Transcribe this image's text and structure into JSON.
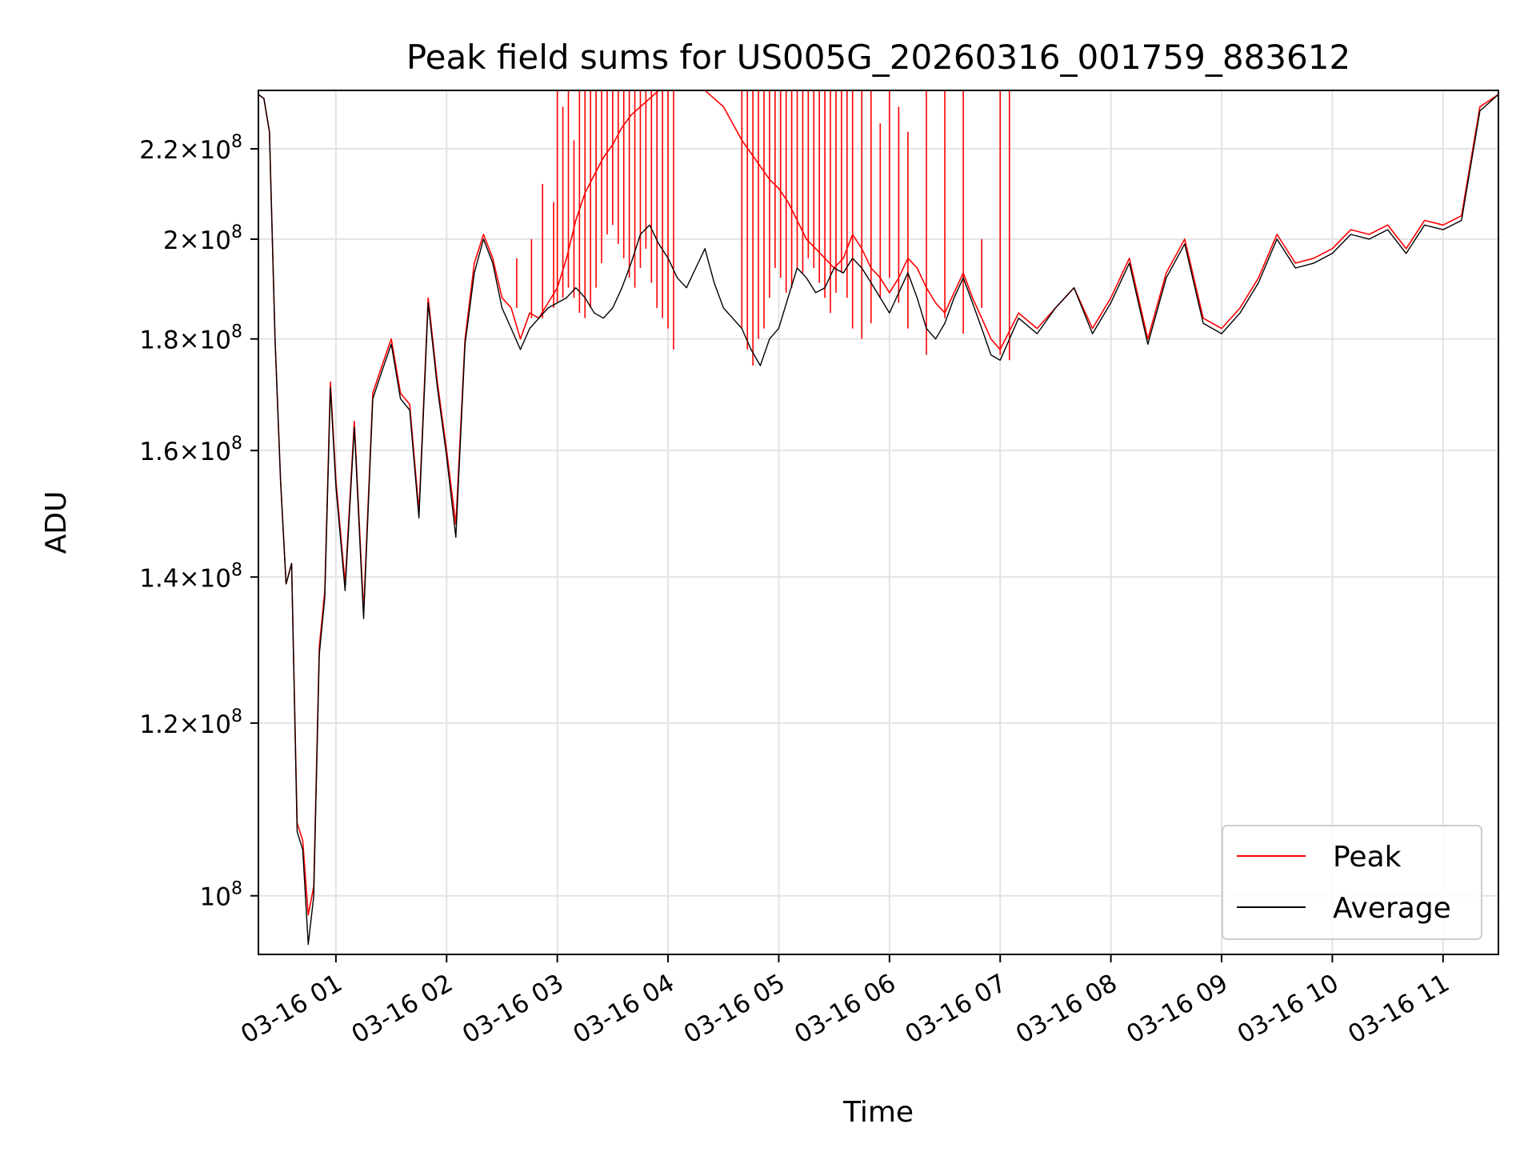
{
  "chart_data": {
    "type": "line",
    "title": "Peak field sums for US005G_20260316_001759_883612",
    "xlabel": "Time",
    "ylabel": "ADU",
    "yscale": "log",
    "grid": true,
    "legend_position": "lower-right",
    "xlim": [
      "2026-03-16 00:18",
      "2026-03-16 11:30"
    ],
    "ylim": [
      94000000,
      234000000
    ],
    "x_ticks": [
      {
        "value": "2026-03-16 01:00",
        "label": "03-16 01"
      },
      {
        "value": "2026-03-16 02:00",
        "label": "03-16 02"
      },
      {
        "value": "2026-03-16 03:00",
        "label": "03-16 03"
      },
      {
        "value": "2026-03-16 04:00",
        "label": "03-16 04"
      },
      {
        "value": "2026-03-16 05:00",
        "label": "03-16 05"
      },
      {
        "value": "2026-03-16 06:00",
        "label": "03-16 06"
      },
      {
        "value": "2026-03-16 07:00",
        "label": "03-16 07"
      },
      {
        "value": "2026-03-16 08:00",
        "label": "03-16 08"
      },
      {
        "value": "2026-03-16 09:00",
        "label": "03-16 09"
      },
      {
        "value": "2026-03-16 10:00",
        "label": "03-16 10"
      },
      {
        "value": "2026-03-16 11:00",
        "label": "03-16 11"
      }
    ],
    "y_ticks": [
      {
        "value": 100000000,
        "mantissa": "",
        "exponent": "8"
      },
      {
        "value": 120000000,
        "mantissa": "1.2",
        "exponent": "8"
      },
      {
        "value": 140000000,
        "mantissa": "1.4",
        "exponent": "8"
      },
      {
        "value": 160000000,
        "mantissa": "1.6",
        "exponent": "8"
      },
      {
        "value": 180000000,
        "mantissa": "1.8",
        "exponent": "8"
      },
      {
        "value": 200000000,
        "mantissa": "2",
        "exponent": "8"
      },
      {
        "value": 220000000,
        "mantissa": "2.2",
        "exponent": "8"
      }
    ],
    "series": [
      {
        "name": "Peak",
        "color": "#ff0000",
        "x": [
          "00:18",
          "00:21",
          "00:24",
          "00:27",
          "00:30",
          "00:33",
          "00:36",
          "00:39",
          "00:42",
          "00:45",
          "00:48",
          "00:51",
          "00:54",
          "00:57",
          "01:00",
          "01:05",
          "01:10",
          "01:15",
          "01:20",
          "01:25",
          "01:30",
          "01:35",
          "01:40",
          "01:45",
          "01:50",
          "01:55",
          "02:00",
          "02:05",
          "02:10",
          "02:15",
          "02:20",
          "02:25",
          "02:30",
          "02:35",
          "02:40",
          "02:45",
          "02:50",
          "02:55",
          "03:00",
          "03:05",
          "03:10",
          "03:15",
          "03:20",
          "03:25",
          "03:30",
          "03:35",
          "03:40",
          "03:45",
          "03:50",
          "03:55",
          "04:00",
          "04:05",
          "04:10",
          "04:15",
          "04:20",
          "04:25",
          "04:30",
          "04:35",
          "04:40",
          "04:45",
          "04:50",
          "04:55",
          "05:00",
          "05:05",
          "05:10",
          "05:15",
          "05:20",
          "05:25",
          "05:30",
          "05:35",
          "05:40",
          "05:45",
          "05:50",
          "05:55",
          "06:00",
          "06:05",
          "06:10",
          "06:15",
          "06:20",
          "06:25",
          "06:30",
          "06:35",
          "06:40",
          "06:45",
          "06:50",
          "06:55",
          "07:00",
          "07:10",
          "07:20",
          "07:30",
          "07:40",
          "07:50",
          "08:00",
          "08:10",
          "08:20",
          "08:30",
          "08:40",
          "08:50",
          "09:00",
          "09:10",
          "09:20",
          "09:30",
          "09:40",
          "09:50",
          "10:00",
          "10:10",
          "10:20",
          "10:30",
          "10:40",
          "10:50",
          "11:00",
          "11:10",
          "11:20",
          "11:30"
        ],
        "y": [
          233000000,
          232000000,
          224000000,
          180000000,
          155000000,
          139000000,
          142000000,
          108000000,
          106000000,
          98000000,
          101000000,
          130000000,
          138000000,
          172000000,
          155000000,
          139000000,
          165000000,
          135000000,
          170000000,
          175000000,
          180000000,
          170000000,
          168000000,
          150000000,
          188000000,
          172000000,
          160000000,
          148000000,
          180000000,
          195000000,
          201000000,
          196000000,
          188000000,
          186000000,
          180000000,
          185000000,
          184000000,
          187000000,
          190000000,
          196000000,
          204000000,
          210000000,
          214000000,
          218000000,
          221000000,
          225000000,
          228000000,
          230000000,
          232000000,
          234000000,
          234000000,
          234000000,
          234000000,
          234000000,
          234000000,
          232000000,
          230000000,
          226000000,
          222000000,
          219000000,
          216000000,
          213000000,
          211000000,
          208000000,
          204000000,
          200000000,
          198000000,
          196000000,
          194000000,
          196000000,
          201000000,
          198000000,
          194000000,
          192000000,
          189000000,
          192000000,
          196000000,
          194000000,
          190000000,
          187000000,
          185000000,
          189000000,
          193000000,
          188000000,
          184000000,
          180000000,
          178000000,
          185000000,
          182000000,
          186000000,
          190000000,
          182000000,
          188000000,
          196000000,
          180000000,
          193000000,
          200000000,
          184000000,
          182000000,
          186000000,
          192000000,
          201000000,
          195000000,
          196000000,
          198000000,
          202000000,
          201000000,
          203000000,
          198000000,
          204000000,
          203000000,
          205000000,
          230000000,
          233000000
        ]
      },
      {
        "name": "Average",
        "color": "#000000",
        "x": [
          "00:18",
          "00:21",
          "00:24",
          "00:27",
          "00:30",
          "00:33",
          "00:36",
          "00:39",
          "00:42",
          "00:45",
          "00:48",
          "00:51",
          "00:54",
          "00:57",
          "01:00",
          "01:05",
          "01:10",
          "01:15",
          "01:20",
          "01:25",
          "01:30",
          "01:35",
          "01:40",
          "01:45",
          "01:50",
          "01:55",
          "02:00",
          "02:05",
          "02:10",
          "02:15",
          "02:20",
          "02:25",
          "02:30",
          "02:35",
          "02:40",
          "02:45",
          "02:50",
          "02:55",
          "03:00",
          "03:05",
          "03:10",
          "03:15",
          "03:20",
          "03:25",
          "03:30",
          "03:35",
          "03:40",
          "03:45",
          "03:50",
          "03:55",
          "04:00",
          "04:05",
          "04:10",
          "04:15",
          "04:20",
          "04:25",
          "04:30",
          "04:35",
          "04:40",
          "04:45",
          "04:50",
          "04:55",
          "05:00",
          "05:05",
          "05:10",
          "05:15",
          "05:20",
          "05:25",
          "05:30",
          "05:35",
          "05:40",
          "05:45",
          "05:50",
          "05:55",
          "06:00",
          "06:05",
          "06:10",
          "06:15",
          "06:20",
          "06:25",
          "06:30",
          "06:35",
          "06:40",
          "06:45",
          "06:50",
          "06:55",
          "07:00",
          "07:10",
          "07:20",
          "07:30",
          "07:40",
          "07:50",
          "08:00",
          "08:10",
          "08:20",
          "08:30",
          "08:40",
          "08:50",
          "09:00",
          "09:10",
          "09:20",
          "09:30",
          "09:40",
          "09:50",
          "10:00",
          "10:10",
          "10:20",
          "10:30",
          "10:40",
          "10:50",
          "11:00",
          "11:10",
          "11:20",
          "11:30"
        ],
        "y": [
          233000000,
          232000000,
          224000000,
          180000000,
          155000000,
          139000000,
          142000000,
          107000000,
          105000000,
          95000000,
          100000000,
          129000000,
          137000000,
          171000000,
          154000000,
          138000000,
          164000000,
          134000000,
          169000000,
          174000000,
          179000000,
          169000000,
          167000000,
          149000000,
          187000000,
          171000000,
          159000000,
          146000000,
          179000000,
          193000000,
          200000000,
          195000000,
          186000000,
          182000000,
          178000000,
          182000000,
          184000000,
          186000000,
          187000000,
          188000000,
          190000000,
          188000000,
          185000000,
          184000000,
          186000000,
          190000000,
          195000000,
          201000000,
          203000000,
          199000000,
          196000000,
          192000000,
          190000000,
          194000000,
          198000000,
          191000000,
          186000000,
          184000000,
          182000000,
          178000000,
          175000000,
          180000000,
          182000000,
          188000000,
          194000000,
          192000000,
          189000000,
          190000000,
          194000000,
          193000000,
          196000000,
          194000000,
          191000000,
          188000000,
          185000000,
          189000000,
          193000000,
          188000000,
          182000000,
          180000000,
          183000000,
          188000000,
          192000000,
          187000000,
          182000000,
          177000000,
          176000000,
          184000000,
          181000000,
          186000000,
          190000000,
          181000000,
          187000000,
          195000000,
          179000000,
          192000000,
          199000000,
          183000000,
          181000000,
          185000000,
          191000000,
          200000000,
          194000000,
          195000000,
          197000000,
          201000000,
          200000000,
          202000000,
          197000000,
          203000000,
          202000000,
          204000000,
          229000000,
          233000000
        ]
      }
    ],
    "peak_spikes": {
      "color": "#ff0000",
      "top_value": 234000000,
      "x": [
        "02:38",
        "02:46",
        "02:52",
        "02:58",
        "03:00",
        "03:03",
        "03:06",
        "03:09",
        "03:12",
        "03:15",
        "03:18",
        "03:21",
        "03:24",
        "03:27",
        "03:30",
        "03:33",
        "03:36",
        "03:39",
        "03:42",
        "03:45",
        "03:48",
        "03:51",
        "03:54",
        "03:57",
        "04:00",
        "04:03",
        "04:40",
        "04:43",
        "04:46",
        "04:49",
        "04:52",
        "04:55",
        "04:58",
        "05:01",
        "05:04",
        "05:07",
        "05:10",
        "05:13",
        "05:16",
        "05:19",
        "05:22",
        "05:25",
        "05:28",
        "05:31",
        "05:34",
        "05:37",
        "05:40",
        "05:45",
        "05:50",
        "05:55",
        "06:00",
        "06:05",
        "06:10",
        "06:20",
        "06:30",
        "06:40",
        "06:50",
        "07:00",
        "07:05"
      ],
      "base": [
        186000000,
        184000000,
        184000000,
        186000000,
        187000000,
        188000000,
        190000000,
        188000000,
        185000000,
        184000000,
        186000000,
        190000000,
        195000000,
        201000000,
        203000000,
        199000000,
        196000000,
        192000000,
        190000000,
        194000000,
        198000000,
        191000000,
        186000000,
        184000000,
        182000000,
        178000000,
        182000000,
        178000000,
        175000000,
        180000000,
        182000000,
        188000000,
        194000000,
        192000000,
        189000000,
        190000000,
        194000000,
        193000000,
        196000000,
        194000000,
        191000000,
        188000000,
        185000000,
        189000000,
        193000000,
        188000000,
        182000000,
        180000000,
        183000000,
        188000000,
        192000000,
        187000000,
        182000000,
        177000000,
        184000000,
        181000000,
        186000000,
        177000000,
        176000000
      ],
      "top": [
        196000000,
        200000000,
        212000000,
        208000000,
        234000000,
        230000000,
        234000000,
        222000000,
        234000000,
        234000000,
        234000000,
        234000000,
        234000000,
        234000000,
        234000000,
        234000000,
        234000000,
        234000000,
        234000000,
        234000000,
        234000000,
        234000000,
        234000000,
        234000000,
        234000000,
        234000000,
        234000000,
        234000000,
        234000000,
        234000000,
        234000000,
        234000000,
        234000000,
        234000000,
        234000000,
        234000000,
        234000000,
        234000000,
        234000000,
        234000000,
        234000000,
        234000000,
        234000000,
        234000000,
        234000000,
        234000000,
        234000000,
        234000000,
        234000000,
        226000000,
        234000000,
        230000000,
        224000000,
        234000000,
        234000000,
        234000000,
        200000000,
        234000000,
        234000000
      ]
    }
  }
}
